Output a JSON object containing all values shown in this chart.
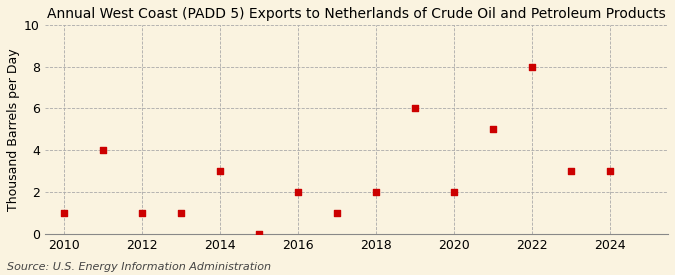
{
  "title": "Annual West Coast (PADD 5) Exports to Netherlands of Crude Oil and Petroleum Products",
  "ylabel": "Thousand Barrels per Day",
  "source": "Source: U.S. Energy Information Administration",
  "years": [
    2010,
    2011,
    2012,
    2013,
    2014,
    2015,
    2016,
    2017,
    2018,
    2019,
    2020,
    2021,
    2022,
    2023,
    2024
  ],
  "values": [
    1,
    4,
    1,
    1,
    3,
    0,
    2,
    1,
    2,
    6,
    2,
    5,
    8,
    3,
    3
  ],
  "marker_color": "#cc0000",
  "marker": "s",
  "marker_size": 18,
  "ylim": [
    0,
    10
  ],
  "yticks": [
    0,
    2,
    4,
    6,
    8,
    10
  ],
  "xlim": [
    2009.5,
    2025.5
  ],
  "xticks": [
    2010,
    2012,
    2014,
    2016,
    2018,
    2020,
    2022,
    2024
  ],
  "grid_color": "#aaaaaa",
  "background_color": "#faf3e0",
  "title_fontsize": 10,
  "axis_fontsize": 9,
  "source_fontsize": 8,
  "ylabel_fontsize": 9
}
